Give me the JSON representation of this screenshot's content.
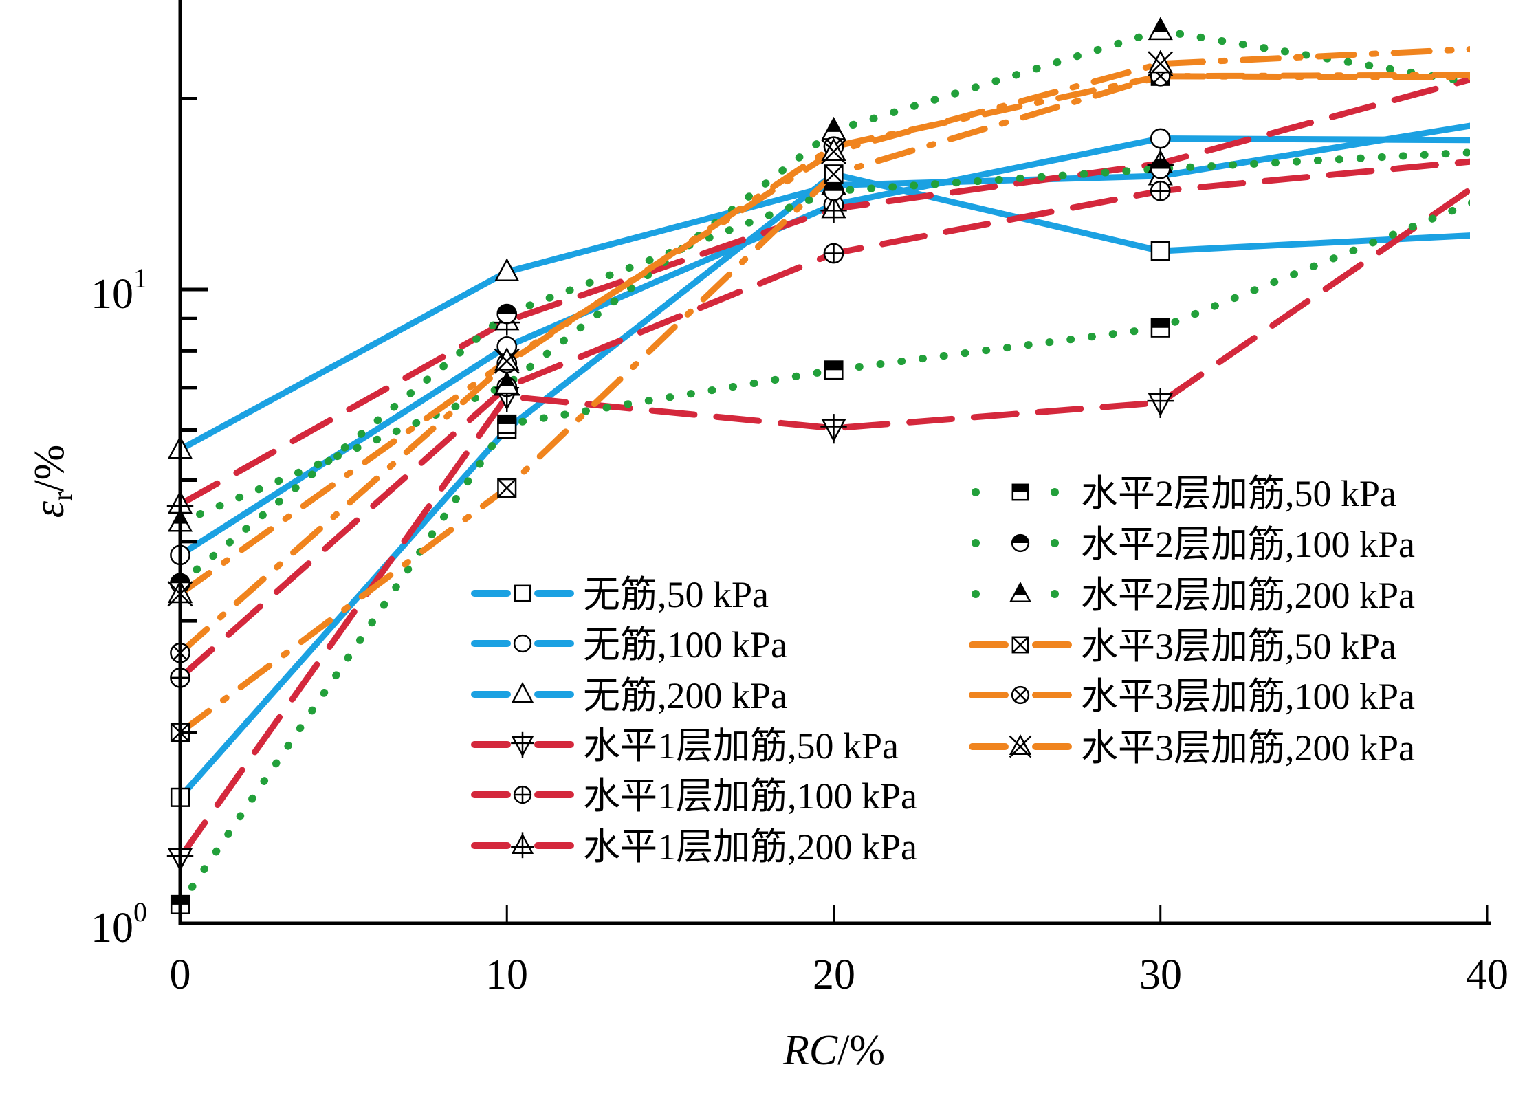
{
  "chart_data": {
    "type": "line",
    "title": "",
    "xlabel": "RC/%",
    "xlabel_italic_part": "RC",
    "xlabel_rest": "/%",
    "ylabel": "εr/%",
    "ylabel_symbol": "ε",
    "ylabel_sub": "r",
    "ylabel_rest": "/%",
    "x": [
      0,
      10,
      20,
      30,
      40
    ],
    "xlim": [
      0,
      40
    ],
    "ylim": [
      1,
      28.6
    ],
    "yscale": "log",
    "grid": false,
    "x_ticks": [
      "0",
      "10",
      "20",
      "30",
      "40"
    ],
    "y_ticks": [
      {
        "value": 1,
        "base": "10",
        "exp": "0"
      },
      {
        "value": 10,
        "base": "10",
        "exp": "1"
      }
    ],
    "y_minor_ticks": [
      2,
      3,
      4,
      5,
      6,
      7,
      8,
      9,
      20
    ],
    "legend_placement": "center-right, two columns",
    "series": [
      {
        "name": "无筋,50 kPa",
        "color": "#1ba1e2",
        "style": "solid",
        "marker": "square-open",
        "values": [
          1.58,
          6.02,
          15.2,
          11.5,
          12.2
        ]
      },
      {
        "name": "无筋,100 kPa",
        "color": "#1ba1e2",
        "style": "solid",
        "marker": "circle-open",
        "values": [
          3.81,
          8.13,
          13.6,
          17.3,
          17.2
        ]
      },
      {
        "name": "无筋,200 kPa",
        "color": "#1ba1e2",
        "style": "solid",
        "marker": "triangle-open",
        "values": [
          5.59,
          10.66,
          14.6,
          15.1,
          18.3
        ]
      },
      {
        "name": "水平1层加筋,50 kPa",
        "color": "#d4283c",
        "style": "dash",
        "marker": "triangle-down-cross",
        "values": [
          1.27,
          6.78,
          6.04,
          6.63,
          15.0
        ]
      },
      {
        "name": "水平1层加筋,100 kPa",
        "color": "#d4283c",
        "style": "dash",
        "marker": "circle-cross",
        "values": [
          2.44,
          7.02,
          11.4,
          14.3,
          16.0
        ]
      },
      {
        "name": "水平1层加筋,200 kPa",
        "color": "#d4283c",
        "style": "dash",
        "marker": "triangle-cross",
        "values": [
          4.58,
          8.92,
          13.4,
          15.8,
          21.8
        ]
      },
      {
        "name": "水平2层加筋,50 kPa",
        "color": "#22a03a",
        "style": "dot",
        "marker": "square-half",
        "values": [
          1.07,
          6.13,
          7.46,
          8.7,
          14.0
        ]
      },
      {
        "name": "水平2层加筋,100 kPa",
        "color": "#22a03a",
        "style": "dot",
        "marker": "circle-half",
        "values": [
          3.44,
          9.15,
          14.3,
          15.5,
          16.5
        ]
      },
      {
        "name": "水平2层加筋,200 kPa",
        "color": "#22a03a",
        "style": "dot",
        "marker": "triangle-half",
        "values": [
          4.29,
          7.07,
          17.8,
          25.6,
          21.0
        ]
      },
      {
        "name": "水平3层加筋,50 kPa",
        "color": "#f0841e",
        "style": "dashdot",
        "marker": "square-x",
        "values": [
          2.0,
          4.86,
          15.2,
          21.7,
          21.6
        ]
      },
      {
        "name": "水平3层加筋,100 kPa",
        "color": "#f0841e",
        "style": "dashdot",
        "marker": "circle-x",
        "values": [
          2.67,
          7.65,
          16.8,
          21.7,
          21.8
        ]
      },
      {
        "name": "水平3层加筋,200 kPa",
        "color": "#f0841e",
        "style": "dashdot",
        "marker": "triangle-x",
        "values": [
          3.31,
          7.71,
          16.5,
          22.7,
          24.0
        ]
      }
    ]
  }
}
